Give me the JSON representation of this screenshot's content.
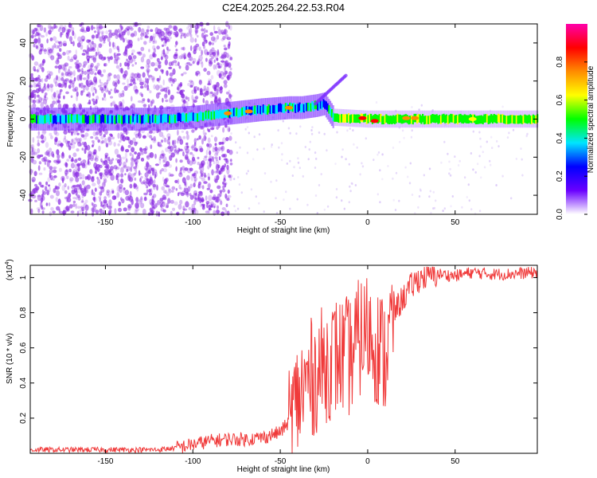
{
  "chart_data": [
    {
      "type": "heatmap",
      "title": "C2E4.2025.264.22.53.R04",
      "xlabel": "Height of straight line (km)",
      "ylabel": "Frequency (Hz)",
      "xlim": [
        -193,
        97
      ],
      "ylim": [
        -50,
        50
      ],
      "xticks": [
        -150,
        -100,
        -50,
        0,
        50
      ],
      "yticks": [
        -40,
        -20,
        0,
        20,
        40
      ],
      "colorbar": {
        "label": "Normalized spectral amplitude",
        "range": [
          0,
          1
        ],
        "ticks": [
          0.0,
          0.2,
          0.4,
          0.6,
          0.8
        ],
        "tick_labels": [
          "0.0",
          "0.2",
          "0.4",
          "0.6",
          "0.8"
        ],
        "colors": [
          "#ffffff",
          "#6a00ff",
          "#0000ff",
          "#00e5ff",
          "#00ff00",
          "#ffff00",
          "#ff8c00",
          "#ff0000",
          "#ff00aa"
        ]
      },
      "ridge": {
        "height_km": [
          -193,
          -150,
          -120,
          -100,
          -80,
          -60,
          -45,
          -38,
          -30,
          -25,
          -20,
          0,
          50,
          97
        ],
        "frequency_hz": [
          0,
          0,
          0,
          1,
          3,
          5,
          6,
          6,
          7,
          8,
          1,
          0,
          0,
          0
        ]
      },
      "grid": false,
      "legend": "colorbar-right"
    },
    {
      "type": "line",
      "title": "",
      "xlabel": "Height of straight line (km)",
      "ylabel": "SNR (10 * v/v)",
      "y_multiplier": "(x10",
      "y_multiplier_exp": "4",
      "y_multiplier_close": ")",
      "xlim": [
        -193,
        97
      ],
      "ylim": [
        0,
        1.07
      ],
      "xticks": [
        -150,
        -100,
        -50,
        0,
        50
      ],
      "yticks": [
        0.2,
        0.4,
        0.6,
        0.8,
        1.0
      ],
      "series": [
        {
          "color": "#f03a3a",
          "x": [
            -193,
            -150,
            -120,
            -110,
            -100,
            -90,
            -80,
            -70,
            -60,
            -50,
            -45,
            -40,
            -35,
            -30,
            -25,
            -20,
            -15,
            -10,
            -5,
            0,
            5,
            10,
            15,
            20,
            25,
            30,
            40,
            50,
            60,
            70,
            80,
            97
          ],
          "y": [
            0.02,
            0.02,
            0.02,
            0.03,
            0.05,
            0.07,
            0.08,
            0.08,
            0.09,
            0.12,
            0.18,
            0.3,
            0.4,
            0.45,
            0.5,
            0.55,
            0.55,
            0.55,
            0.65,
            0.7,
            0.62,
            0.55,
            0.8,
            0.88,
            0.95,
            1.0,
            1.02,
            1.01,
            1.03,
            1.02,
            1.02,
            1.03
          ]
        }
      ],
      "grid": false
    }
  ]
}
